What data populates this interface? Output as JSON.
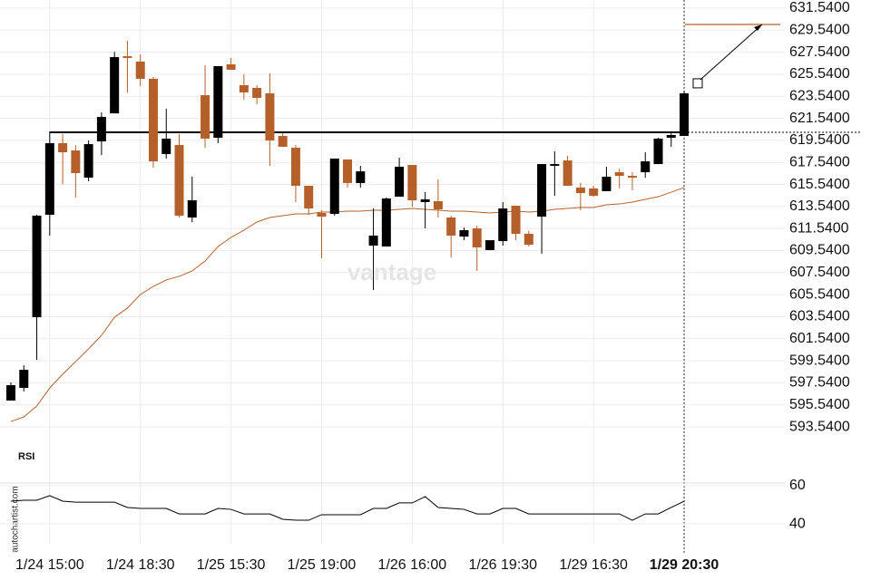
{
  "chart_data": [
    {
      "type": "candlestick",
      "categories": [
        null,
        null,
        null,
        "1/24 15:00",
        null,
        null,
        null,
        null,
        null,
        null,
        "1/24 18:30",
        null,
        null,
        null,
        null,
        null,
        null,
        "1/25 15:30",
        null,
        null,
        null,
        null,
        null,
        null,
        "1/25 19:00",
        null,
        null,
        null,
        null,
        null,
        null,
        "1/26 16:00",
        null,
        null,
        null,
        null,
        null,
        null,
        "1/26 19:30",
        null,
        null,
        null,
        null,
        null,
        null,
        "1/29 16:30",
        null,
        null,
        null,
        null,
        null,
        null,
        "1/29 20:30"
      ],
      "open": [
        595.93,
        597.08,
        603.49,
        612.79,
        619.29,
        618.63,
        616.16,
        619.45,
        621.99,
        627.18,
        626.69,
        625.13,
        618.3,
        619.12,
        612.54,
        623.64,
        619.78,
        626.44,
        624.55,
        624.3,
        623.81,
        619.94,
        618.87,
        615.42,
        612.95,
        612.87,
        617.81,
        615.67,
        609.99,
        609.91,
        614.43,
        617.31,
        613.94,
        614.02,
        612.54,
        610.81,
        611.55,
        609.58,
        610.4,
        613.61,
        611.06,
        612.62,
        617.23,
        617.72,
        615.26,
        615.18,
        614.93,
        616.65,
        616.32,
        616.65,
        617.39,
        619.78,
        619.94
      ],
      "high": [
        597.57,
        599.13,
        612.79,
        620.36,
        620.11,
        619.12,
        619.53,
        622.08,
        627.59,
        628.58,
        627.35,
        625.29,
        622.41,
        620.11,
        616.24,
        626.36,
        626.28,
        627.02,
        625.54,
        624.55,
        625.62,
        620.19,
        619.12,
        615.42,
        613.2,
        617.89,
        617.81,
        617.23,
        613.36,
        614.35,
        617.97,
        617.31,
        614.84,
        616.0,
        612.71,
        611.63,
        611.8,
        610.48,
        613.94,
        613.61,
        611.31,
        617.39,
        618.54,
        618.13,
        615.67,
        615.42,
        617.15,
        616.98,
        616.65,
        618.46,
        619.78,
        620.27,
        624.06
      ],
      "low": [
        595.93,
        596.75,
        599.63,
        610.9,
        615.58,
        614.35,
        615.83,
        618.21,
        621.99,
        623.89,
        624.47,
        617.06,
        617.89,
        612.54,
        612.13,
        618.87,
        619.29,
        625.95,
        623.23,
        622.82,
        617.23,
        618.96,
        613.94,
        612.79,
        608.84,
        612.71,
        615.26,
        615.26,
        605.96,
        609.91,
        614.43,
        613.53,
        611.55,
        612.54,
        608.92,
        610.48,
        607.69,
        609.58,
        609.99,
        610.48,
        609.91,
        609.25,
        614.51,
        615.42,
        613.2,
        614.43,
        614.93,
        615.18,
        615.01,
        616.16,
        617.39,
        618.96,
        619.94
      ],
      "close": [
        597.32,
        598.72,
        612.71,
        619.29,
        618.46,
        616.57,
        619.2,
        621.67,
        627.1,
        627.02,
        625.13,
        617.64,
        619.7,
        612.71,
        614.1,
        619.7,
        626.28,
        625.95,
        623.89,
        623.4,
        619.53,
        618.96,
        615.42,
        613.36,
        612.62,
        617.89,
        615.67,
        616.73,
        610.9,
        614.27,
        617.15,
        614.1,
        614.19,
        613.28,
        610.9,
        611.39,
        609.83,
        610.48,
        613.36,
        611.06,
        610.07,
        617.39,
        617.39,
        615.42,
        614.76,
        614.51,
        616.24,
        616.32,
        616.16,
        617.64,
        619.7,
        620.03,
        623.81
      ],
      "up_color": "#000000",
      "down_color": "#b5602a",
      "moving_average": {
        "color": "#b5602a",
        "values": [
          594.03,
          594.44,
          595.43,
          597.07,
          598.31,
          599.46,
          600.61,
          601.85,
          603.49,
          604.32,
          605.55,
          606.29,
          606.87,
          607.2,
          607.69,
          608.59,
          609.91,
          610.73,
          611.39,
          612.13,
          612.54,
          612.71,
          612.87,
          612.87,
          613.03,
          613.03,
          613.12,
          613.12,
          613.2,
          613.2,
          613.28,
          613.36,
          613.28,
          613.2,
          613.12,
          613.12,
          613.03,
          612.95,
          613.03,
          613.12,
          613.03,
          613.12,
          613.28,
          613.36,
          613.45,
          613.45,
          613.69,
          613.77,
          613.94,
          614.19,
          614.43,
          614.84,
          615.26
        ]
      },
      "level": 620.27,
      "target": 630.06,
      "arrow_from": 624.72,
      "ylim": [
        591.98,
        632.28
      ],
      "yticks": [
        {
          "value": 631.54,
          "label": "631.5400"
        },
        {
          "value": 629.54,
          "label": "629.5400"
        },
        {
          "value": 627.54,
          "label": "627.5400"
        },
        {
          "value": 625.54,
          "label": "625.5400"
        },
        {
          "value": 623.54,
          "label": "623.5400"
        },
        {
          "value": 621.54,
          "label": "621.5400"
        },
        {
          "value": 619.54,
          "label": "619.5400"
        },
        {
          "value": 617.54,
          "label": "617.5400"
        },
        {
          "value": 615.54,
          "label": "615.5400"
        },
        {
          "value": 613.54,
          "label": "613.5400"
        },
        {
          "value": 611.54,
          "label": "611.5400"
        },
        {
          "value": 609.54,
          "label": "609.5400"
        },
        {
          "value": 607.54,
          "label": "607.5400"
        },
        {
          "value": 605.54,
          "label": "605.5400"
        },
        {
          "value": 603.54,
          "label": "603.5400"
        },
        {
          "value": 601.54,
          "label": "601.5400"
        },
        {
          "value": 599.54,
          "label": "599.5400"
        },
        {
          "value": 597.54,
          "label": "597.5400"
        },
        {
          "value": 595.54,
          "label": "595.5400"
        },
        {
          "value": 593.54,
          "label": "593.5400"
        }
      ],
      "grid": true,
      "watermark": "vantage",
      "source": "autochartist.com"
    },
    {
      "type": "line",
      "title": "RSI",
      "color": "#000000",
      "values": [
        51.9,
        52.4,
        52.4,
        54.8,
        51.9,
        51.4,
        51.4,
        51.4,
        51.4,
        48.6,
        48.1,
        48.1,
        48.1,
        45.2,
        45.2,
        45.2,
        48.1,
        47.6,
        45.2,
        45.2,
        45.2,
        42.4,
        41.9,
        41.9,
        44.8,
        44.8,
        44.8,
        44.8,
        48.1,
        48.1,
        51.0,
        51.0,
        54.3,
        48.6,
        48.1,
        47.6,
        45.2,
        45.2,
        48.1,
        48.1,
        45.2,
        45.2,
        45.2,
        45.2,
        45.2,
        45.2,
        45.2,
        45.2,
        41.9,
        45.2,
        45.2,
        48.6,
        51.9
      ],
      "ylim": [
        28.6,
        79.5
      ],
      "yticks": [
        60,
        40
      ],
      "grid": true
    }
  ]
}
